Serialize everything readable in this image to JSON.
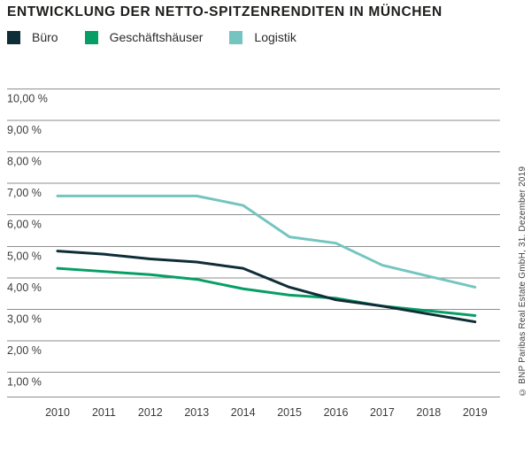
{
  "header": {
    "title": "ENTWICKLUNG DER NETTO-SPITZENRENDITEN IN MÜNCHEN"
  },
  "chart_data": {
    "type": "line",
    "title": "ENTWICKLUNG DER NETTO-SPITZENRENDITEN IN MÜNCHEN",
    "categories": [
      "2010",
      "2011",
      "2012",
      "2013",
      "2014",
      "2015",
      "2016",
      "2017",
      "2018",
      "2019"
    ],
    "series": [
      {
        "name": "Büro",
        "color": "#0e2d37",
        "values": [
          4.85,
          4.75,
          4.6,
          4.5,
          4.3,
          3.7,
          3.3,
          3.1,
          2.85,
          2.6
        ]
      },
      {
        "name": "Geschäftshäuser",
        "color": "#079e66",
        "values": [
          4.3,
          4.2,
          4.1,
          3.95,
          3.65,
          3.45,
          3.35,
          3.1,
          2.95,
          2.8
        ]
      },
      {
        "name": "Logistik",
        "color": "#74c5c0",
        "values": [
          6.6,
          6.6,
          6.6,
          6.6,
          6.3,
          5.3,
          5.1,
          4.4,
          4.05,
          3.7
        ]
      }
    ],
    "y_axis": {
      "unit": "%",
      "ticks": [
        {
          "value": 10,
          "label": "10,00 %"
        },
        {
          "value": 9,
          "label": "9,00 %"
        },
        {
          "value": 8,
          "label": "8,00 %"
        },
        {
          "value": 7,
          "label": "7,00 %"
        },
        {
          "value": 6,
          "label": "6,00 %"
        },
        {
          "value": 5,
          "label": "5,00 %"
        },
        {
          "value": 4,
          "label": "4,00 %"
        },
        {
          "value": 3,
          "label": "3,00 %"
        },
        {
          "value": 2,
          "label": "2,00 %"
        },
        {
          "value": 1,
          "label": "1,00 %"
        }
      ]
    },
    "ylim": [
      1,
      10
    ],
    "grid": "horizontal",
    "legend_position": "top-left",
    "source": "© BNP Paribas Real Estate GmbH, 31. Dezember 2019"
  }
}
